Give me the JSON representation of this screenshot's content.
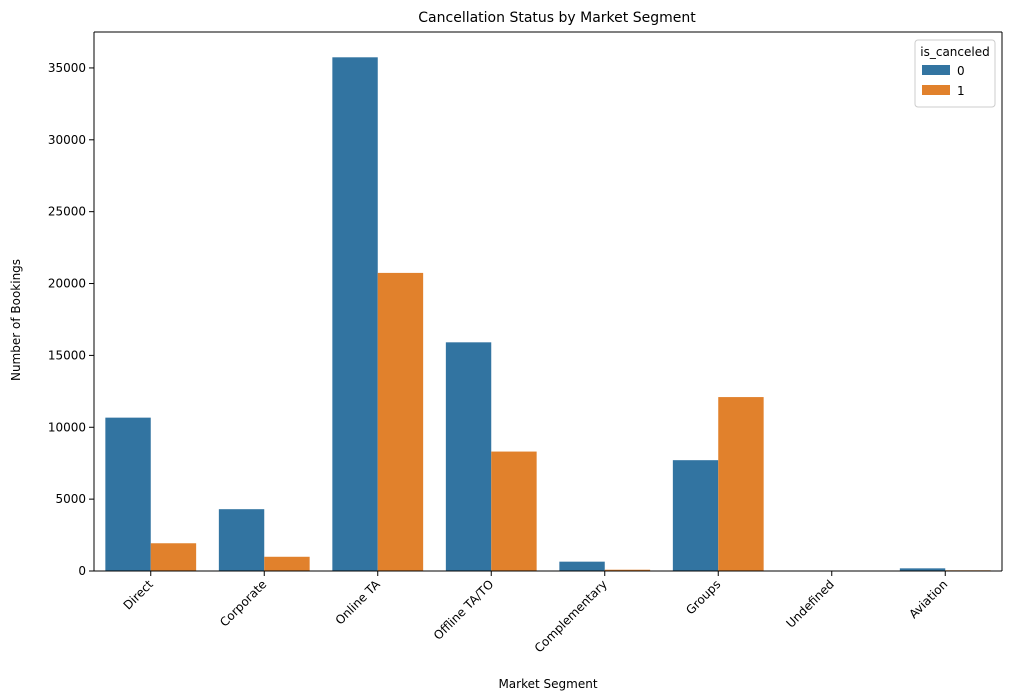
{
  "chart_data": {
    "type": "bar",
    "title": "Cancellation Status by Market Segment",
    "xlabel": "Market Segment",
    "ylabel": "Number of Bookings",
    "categories": [
      "Direct",
      "Corporate",
      "Online TA",
      "Offline TA/TO",
      "Complementary",
      "Groups",
      "Undefined",
      "Aviation"
    ],
    "series": [
      {
        "name": "0",
        "color": "#3274a1",
        "values": [
          10670,
          4300,
          35740,
          15910,
          650,
          7710,
          0,
          185
        ]
      },
      {
        "name": "1",
        "color": "#e1812c",
        "values": [
          1930,
          990,
          20740,
          8310,
          90,
          12100,
          2,
          50
        ]
      }
    ],
    "ylim": [
      0,
      37500
    ],
    "yticks": [
      0,
      5000,
      10000,
      15000,
      20000,
      25000,
      30000,
      35000
    ],
    "grid": false,
    "legend": {
      "title": "is_canceled",
      "position": "top-right"
    }
  }
}
